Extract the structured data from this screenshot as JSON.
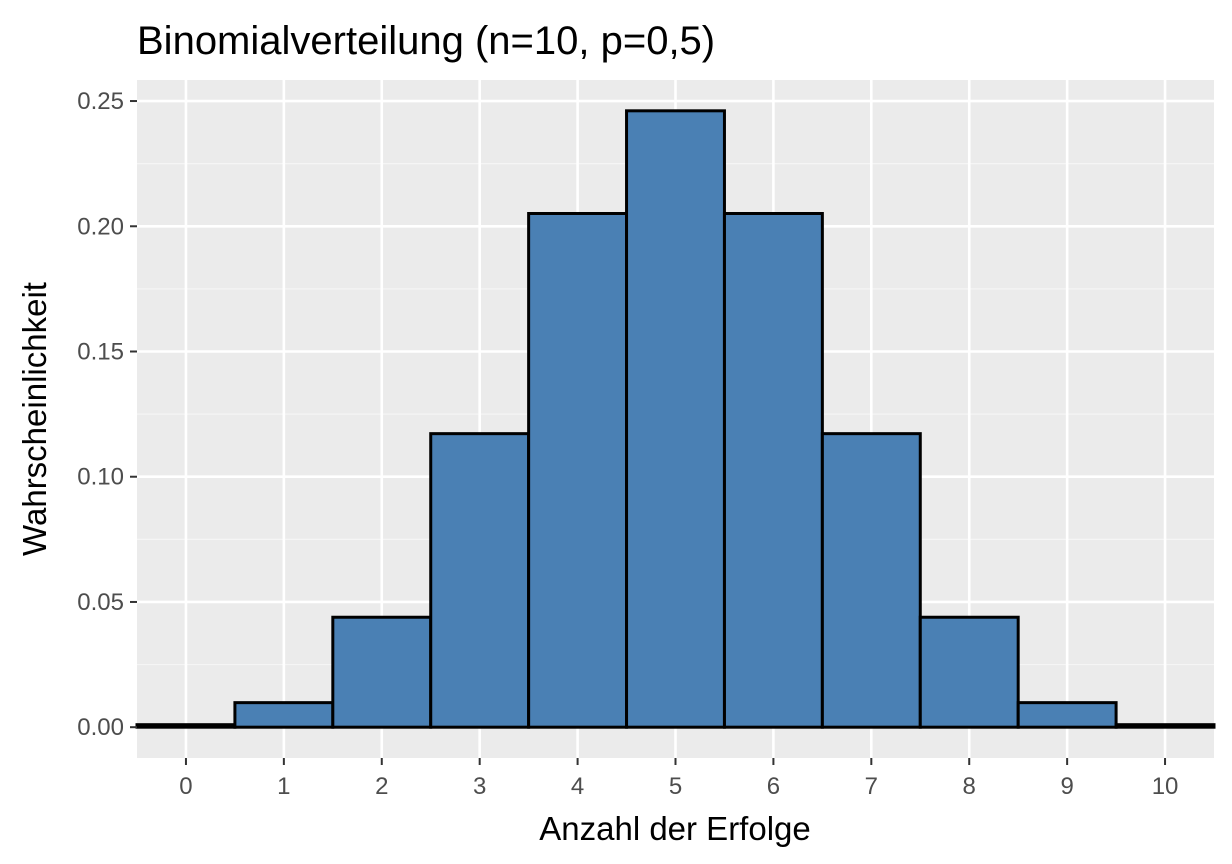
{
  "chart_data": {
    "type": "bar",
    "title": "Binomialverteilung (n=10, p=0,5)",
    "xlabel": "Anzahl der Erfolge",
    "ylabel": "Wahrscheinlichkeit",
    "categories": [
      0,
      1,
      2,
      3,
      4,
      5,
      6,
      7,
      8,
      9,
      10
    ],
    "values": [
      0.001,
      0.0098,
      0.0439,
      0.1172,
      0.2051,
      0.2461,
      0.2051,
      0.1172,
      0.0439,
      0.0098,
      0.001
    ],
    "x_ticks": [
      "0",
      "1",
      "2",
      "3",
      "4",
      "5",
      "6",
      "7",
      "8",
      "9",
      "10"
    ],
    "y_ticks": [
      "0.00",
      "0.05",
      "0.10",
      "0.15",
      "0.20",
      "0.25"
    ],
    "y_tick_values": [
      0,
      0.05,
      0.1,
      0.15,
      0.2,
      0.25
    ],
    "xlim": [
      -0.5,
      10.5
    ],
    "ylim": [
      -0.0123,
      0.2584
    ],
    "grid": true,
    "legend": "none",
    "colors": {
      "bar_fill": "#4a80b4",
      "bar_outline": "#000000",
      "panel_background": "#ebebeb",
      "grid_major": "#ffffff",
      "grid_minor": "#f5f5f5"
    }
  }
}
